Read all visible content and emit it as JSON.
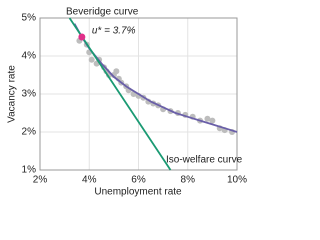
{
  "chart_data": {
    "type": "scatter",
    "x_label": "Unemployment rate",
    "y_label": "Vacancy rate",
    "xlim": [
      2,
      10
    ],
    "ylim": [
      1,
      5
    ],
    "xticks": [
      {
        "value": 2,
        "label": "2%"
      },
      {
        "value": 4,
        "label": "4%"
      },
      {
        "value": 6,
        "label": "6%"
      },
      {
        "value": 8,
        "label": "8%"
      },
      {
        "value": 10,
        "label": "10%"
      }
    ],
    "yticks": [
      {
        "value": 1,
        "label": "1%"
      },
      {
        "value": 2,
        "label": "2%"
      },
      {
        "value": 3,
        "label": "3%"
      },
      {
        "value": 4,
        "label": "4%"
      },
      {
        "value": 5,
        "label": "5%"
      }
    ],
    "grid": true,
    "points": {
      "color": "#bdbdbd",
      "x": [
        3.6,
        3.9,
        4.0,
        4.1,
        4.3,
        4.4,
        4.6,
        4.7,
        4.8,
        5.0,
        5.1,
        5.2,
        5.3,
        5.5,
        5.6,
        5.8,
        6.0,
        6.2,
        6.4,
        6.6,
        6.8,
        7.0,
        7.3,
        7.6,
        7.9,
        8.2,
        8.5,
        8.8,
        9.0,
        9.3,
        9.5,
        9.8
      ],
      "y": [
        4.4,
        4.3,
        4.1,
        3.9,
        3.8,
        3.9,
        3.7,
        3.6,
        3.5,
        3.5,
        3.6,
        3.4,
        3.3,
        3.2,
        3.1,
        3.0,
        2.95,
        2.9,
        2.8,
        2.75,
        2.7,
        2.6,
        2.55,
        2.5,
        2.45,
        2.4,
        2.3,
        2.35,
        2.3,
        2.1,
        2.05,
        2.0
      ]
    },
    "curves": [
      {
        "name": "Beveridge curve",
        "color": "#6a5fa8",
        "x": [
          3.4,
          3.7,
          4.0,
          4.5,
          5.0,
          5.5,
          6.0,
          6.5,
          7.0,
          7.5,
          8.0,
          8.5,
          9.0,
          9.5,
          10.0
        ],
        "y": [
          4.85,
          4.5,
          4.2,
          3.8,
          3.45,
          3.2,
          3.0,
          2.8,
          2.65,
          2.5,
          2.4,
          2.3,
          2.2,
          2.1,
          2.0
        ]
      },
      {
        "name": "Iso-welfare curve",
        "color": "#1a9a73",
        "x": [
          3.2,
          7.3
        ],
        "y": [
          5.0,
          1.0
        ]
      }
    ],
    "highlight": {
      "label": "u* = 3.7%",
      "x": 3.7,
      "y": 4.5,
      "color": "#e0308a"
    }
  }
}
